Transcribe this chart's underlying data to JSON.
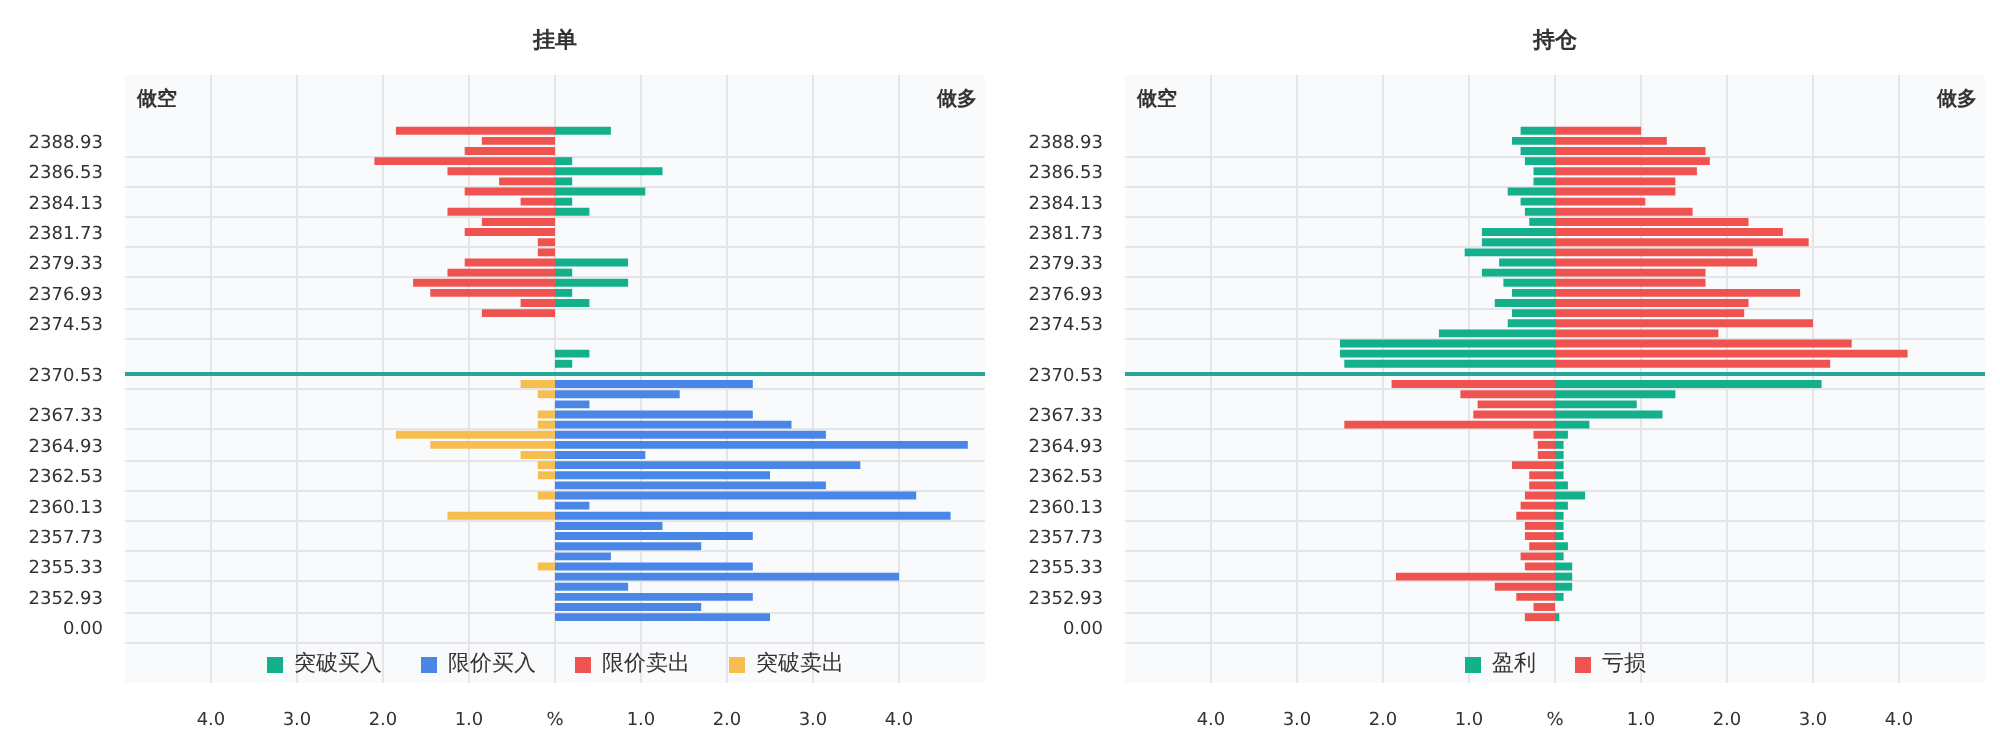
{
  "chart_data": [
    {
      "type": "bar",
      "orientation": "horizontal",
      "stacked": true,
      "title": "挂单",
      "annotations": [
        "做空",
        "做多"
      ],
      "categories": [
        null,
        "2388.93",
        null,
        null,
        "2386.53",
        null,
        null,
        "2384.13",
        null,
        null,
        "2381.73",
        null,
        null,
        "2379.33",
        null,
        null,
        "2376.93",
        null,
        null,
        "2374.53",
        null,
        null,
        null,
        null,
        "2370.53",
        null,
        null,
        null,
        "2367.33",
        null,
        null,
        "2364.93",
        null,
        null,
        "2362.53",
        null,
        null,
        "2360.13",
        null,
        null,
        "2357.73",
        null,
        null,
        "2355.33",
        null,
        null,
        "2352.93",
        null,
        null,
        "0.00"
      ],
      "series": [
        {
          "name": "突破买入",
          "color": "#14b08c",
          "values": [
            0.65,
            null,
            null,
            0.2,
            1.25,
            0.2,
            1.05,
            0.2,
            0.4,
            null,
            null,
            null,
            null,
            0.85,
            0.2,
            0.85,
            0.2,
            0.4,
            null,
            null,
            null,
            null,
            0.4,
            0.2,
            null,
            null,
            null,
            null,
            null,
            null,
            null,
            null,
            null,
            null,
            null,
            null,
            null,
            null,
            null,
            null,
            null,
            null,
            null,
            null,
            null,
            null,
            null,
            null,
            null,
            null
          ]
        },
        {
          "name": "限价买入",
          "color": "#4a86e8",
          "values": [
            null,
            null,
            null,
            null,
            null,
            null,
            null,
            null,
            null,
            null,
            null,
            null,
            null,
            null,
            null,
            null,
            null,
            null,
            null,
            null,
            null,
            null,
            null,
            null,
            null,
            2.3,
            1.45,
            0.4,
            2.3,
            2.75,
            3.15,
            4.8,
            1.05,
            3.55,
            2.5,
            3.15,
            4.2,
            0.4,
            4.6,
            1.25,
            2.3,
            1.7,
            0.65,
            2.3,
            4.0,
            0.85,
            2.3,
            1.7,
            2.5,
            null
          ]
        },
        {
          "name": "限价卖出",
          "color": "#ef5350",
          "values": [
            -1.85,
            -0.85,
            -1.05,
            -2.1,
            -1.25,
            -0.65,
            -1.05,
            -0.4,
            -1.25,
            -0.85,
            -1.05,
            -0.2,
            -0.2,
            -1.05,
            -1.25,
            -1.65,
            -1.45,
            -0.4,
            -0.85,
            null,
            null,
            null,
            null,
            null,
            null,
            null,
            null,
            null,
            null,
            null,
            null,
            null,
            null,
            null,
            null,
            null,
            null,
            null,
            null,
            null,
            null,
            null,
            null,
            null,
            null,
            null,
            null,
            null,
            null,
            null
          ]
        },
        {
          "name": "突破卖出",
          "color": "#f6bd4f",
          "values": [
            null,
            null,
            null,
            null,
            null,
            null,
            null,
            null,
            null,
            null,
            null,
            null,
            null,
            null,
            null,
            null,
            null,
            null,
            null,
            null,
            null,
            null,
            null,
            null,
            null,
            -0.4,
            -0.2,
            null,
            -0.2,
            -0.2,
            -1.85,
            -1.45,
            -0.4,
            -0.2,
            -0.2,
            null,
            -0.2,
            null,
            -1.25,
            null,
            null,
            null,
            null,
            -0.2,
            null,
            null,
            null,
            null,
            null,
            null
          ]
        }
      ],
      "xlim": [
        -5,
        5
      ],
      "xticks": [
        {
          "value": -4,
          "label": "4.0"
        },
        {
          "value": -3,
          "label": "3.0"
        },
        {
          "value": -2,
          "label": "2.0"
        },
        {
          "value": -1,
          "label": "1.0"
        },
        {
          "value": 0,
          "label": "%"
        },
        {
          "value": 1,
          "label": "1.0"
        },
        {
          "value": 2,
          "label": "2.0"
        },
        {
          "value": 3,
          "label": "3.0"
        },
        {
          "value": 4,
          "label": "4.0"
        }
      ],
      "grid": true,
      "legend": "bottom",
      "ref_lines": [
        {
          "axis": "y",
          "value": "2370.53",
          "color": "#26a69a"
        }
      ]
    },
    {
      "type": "bar",
      "orientation": "horizontal",
      "stacked": true,
      "title": "持仓",
      "annotations": [
        "做空",
        "做多"
      ],
      "categories": [
        null,
        "2388.93",
        null,
        null,
        "2386.53",
        null,
        null,
        "2384.13",
        null,
        null,
        "2381.73",
        null,
        null,
        "2379.33",
        null,
        null,
        "2376.93",
        null,
        null,
        "2374.53",
        null,
        null,
        null,
        null,
        "2370.53",
        null,
        null,
        null,
        "2367.33",
        null,
        null,
        "2364.93",
        null,
        null,
        "2362.53",
        null,
        null,
        "2360.13",
        null,
        null,
        "2357.73",
        null,
        null,
        "2355.33",
        null,
        null,
        "2352.93",
        null,
        null,
        "0.00"
      ],
      "series": [
        {
          "name": "盈利",
          "color": "#14b08c",
          "values": [
            -0.4,
            -0.5,
            -0.4,
            -0.35,
            -0.25,
            -0.25,
            -0.55,
            -0.4,
            -0.35,
            -0.3,
            -0.85,
            -0.85,
            -1.05,
            -0.65,
            -0.85,
            -0.6,
            -0.5,
            -0.7,
            -0.5,
            -0.55,
            -1.35,
            -2.5,
            -2.5,
            -2.45,
            null,
            3.1,
            1.4,
            0.95,
            1.25,
            0.4,
            0.15,
            0.1,
            0.1,
            0.1,
            0.1,
            0.15,
            0.35,
            0.15,
            0.1,
            0.1,
            0.1,
            0.15,
            0.1,
            0.2,
            0.2,
            0.2,
            0.1,
            null,
            0.05,
            null
          ]
        },
        {
          "name": "亏损",
          "color": "#ef5350",
          "values": [
            1.0,
            1.3,
            1.75,
            1.8,
            1.65,
            1.4,
            1.4,
            1.05,
            1.6,
            2.25,
            2.65,
            2.95,
            2.3,
            2.35,
            1.75,
            1.75,
            2.85,
            2.25,
            2.2,
            3.0,
            1.9,
            3.45,
            4.1,
            3.2,
            null,
            -1.9,
            -1.1,
            -0.9,
            -0.95,
            -2.45,
            -0.25,
            -0.2,
            -0.2,
            -0.5,
            -0.3,
            -0.3,
            -0.35,
            -0.4,
            -0.45,
            -0.35,
            -0.35,
            -0.3,
            -0.4,
            -0.35,
            -1.85,
            -0.7,
            -0.45,
            -0.25,
            -0.35,
            null
          ]
        }
      ],
      "xlim": [
        -5,
        5
      ],
      "xticks": [
        {
          "value": -4,
          "label": "4.0"
        },
        {
          "value": -3,
          "label": "3.0"
        },
        {
          "value": -2,
          "label": "2.0"
        },
        {
          "value": -1,
          "label": "1.0"
        },
        {
          "value": 0,
          "label": "%"
        },
        {
          "value": 1,
          "label": "1.0"
        },
        {
          "value": 2,
          "label": "2.0"
        },
        {
          "value": 3,
          "label": "3.0"
        },
        {
          "value": 4,
          "label": "4.0"
        }
      ],
      "grid": true,
      "legend": "bottom",
      "ref_lines": [
        {
          "axis": "y",
          "value": "2370.53",
          "color": "#26a69a"
        }
      ]
    }
  ]
}
